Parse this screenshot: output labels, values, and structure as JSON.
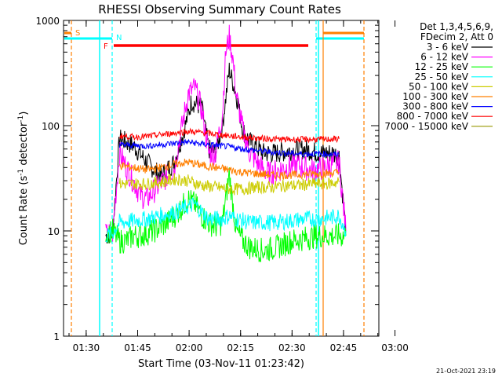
{
  "chart_data": {
    "type": "line",
    "title": "RHESSI Observing Summary Count Rates",
    "xlabel": "Start Time (03-Nov-11 01:23:42)",
    "ylabel_main": "Count Rate (s",
    "ylabel_sup1": "-1",
    "ylabel_mid": " detector",
    "ylabel_sup2": "-1",
    "ylabel_end": ")",
    "yscale": "log",
    "ylim": [
      1,
      1000
    ],
    "xlim_minutes": [
      -0.3,
      91.6
    ],
    "x_ticks": [
      {
        "m": 6.3,
        "label": "01:30"
      },
      {
        "m": 21.3,
        "label": "01:45"
      },
      {
        "m": 36.3,
        "label": "02:00"
      },
      {
        "m": 51.3,
        "label": "02:15"
      },
      {
        "m": 66.3,
        "label": "02:30"
      },
      {
        "m": 81.3,
        "label": "02:45"
      },
      {
        "m": 96.3,
        "label": "03:00"
      }
    ],
    "y_ticks": [
      {
        "v": 1,
        "label": "1"
      },
      {
        "v": 10,
        "label": "10"
      },
      {
        "v": 100,
        "label": "100"
      },
      {
        "v": 1000,
        "label": "1000"
      }
    ],
    "legend_header": [
      "Det 1,3,4,5,6,9,",
      "FDecim 2, Att 0"
    ],
    "series": [
      {
        "name": "3 - 6 keV",
        "color": "#000000",
        "points": [
          [
            12,
            9
          ],
          [
            14,
            9.5
          ],
          [
            16,
            75
          ],
          [
            20,
            65
          ],
          [
            24,
            45
          ],
          [
            28,
            33
          ],
          [
            32,
            45
          ],
          [
            35,
            95
          ],
          [
            37,
            170
          ],
          [
            40,
            150
          ],
          [
            42,
            60
          ],
          [
            44,
            55
          ],
          [
            46,
            100
          ],
          [
            48,
            340
          ],
          [
            50,
            200
          ],
          [
            52,
            90
          ],
          [
            54,
            70
          ],
          [
            58,
            55
          ],
          [
            62,
            55
          ],
          [
            66,
            58
          ],
          [
            70,
            60
          ],
          [
            74,
            55
          ],
          [
            78,
            55
          ],
          [
            80,
            52
          ],
          [
            82,
            10
          ]
        ]
      },
      {
        "name": "6 - 12 keV",
        "color": "#ff00ff",
        "points": [
          [
            12,
            9
          ],
          [
            14,
            9.5
          ],
          [
            16,
            55
          ],
          [
            18,
            40
          ],
          [
            20,
            30
          ],
          [
            22,
            22
          ],
          [
            24,
            20
          ],
          [
            26,
            24
          ],
          [
            28,
            28
          ],
          [
            32,
            40
          ],
          [
            34,
            90
          ],
          [
            36,
            200
          ],
          [
            38,
            230
          ],
          [
            40,
            140
          ],
          [
            42,
            55
          ],
          [
            44,
            55
          ],
          [
            46,
            130
          ],
          [
            47,
            500
          ],
          [
            48,
            700
          ],
          [
            49,
            450
          ],
          [
            50,
            200
          ],
          [
            52,
            90
          ],
          [
            54,
            55
          ],
          [
            56,
            45
          ],
          [
            58,
            38
          ],
          [
            60,
            35
          ],
          [
            64,
            40
          ],
          [
            68,
            42
          ],
          [
            72,
            38
          ],
          [
            76,
            40
          ],
          [
            80,
            45
          ],
          [
            82,
            10
          ]
        ]
      },
      {
        "name": "12 - 25 keV",
        "color": "#00ff00",
        "points": [
          [
            12,
            10
          ],
          [
            14,
            10
          ],
          [
            16,
            8
          ],
          [
            18,
            8
          ],
          [
            20,
            9
          ],
          [
            22,
            9
          ],
          [
            26,
            10
          ],
          [
            30,
            12
          ],
          [
            33,
            15
          ],
          [
            36,
            20
          ],
          [
            38,
            18
          ],
          [
            40,
            14
          ],
          [
            42,
            12
          ],
          [
            44,
            11
          ],
          [
            46,
            12
          ],
          [
            48,
            35
          ],
          [
            50,
            10
          ],
          [
            52,
            8
          ],
          [
            54,
            7
          ],
          [
            58,
            6.5
          ],
          [
            62,
            7
          ],
          [
            66,
            8
          ],
          [
            70,
            8.5
          ],
          [
            74,
            9
          ],
          [
            78,
            9
          ],
          [
            82,
            9
          ]
        ]
      },
      {
        "name": "25 - 50 keV",
        "color": "#00ffff",
        "points": [
          [
            12,
            9
          ],
          [
            14,
            9.5
          ],
          [
            16,
            12
          ],
          [
            20,
            12.5
          ],
          [
            24,
            13
          ],
          [
            28,
            14
          ],
          [
            32,
            15
          ],
          [
            36,
            17
          ],
          [
            38,
            18
          ],
          [
            40,
            15
          ],
          [
            42,
            13
          ],
          [
            44,
            13
          ],
          [
            46,
            13
          ],
          [
            48,
            14
          ],
          [
            50,
            13
          ],
          [
            54,
            12
          ],
          [
            58,
            12
          ],
          [
            62,
            12
          ],
          [
            66,
            12.5
          ],
          [
            70,
            13
          ],
          [
            74,
            13
          ],
          [
            78,
            13.5
          ],
          [
            80,
            14
          ],
          [
            82,
            10
          ]
        ]
      },
      {
        "name": "50 - 100 keV",
        "color": "#cccc00",
        "points": [
          [
            16,
            28
          ],
          [
            20,
            28
          ],
          [
            24,
            28
          ],
          [
            28,
            29
          ],
          [
            32,
            31
          ],
          [
            36,
            30
          ],
          [
            40,
            27
          ],
          [
            44,
            26
          ],
          [
            48,
            25
          ],
          [
            52,
            25
          ],
          [
            56,
            26
          ],
          [
            60,
            26
          ],
          [
            64,
            27
          ],
          [
            68,
            27
          ],
          [
            72,
            28
          ],
          [
            76,
            28
          ],
          [
            80,
            29
          ]
        ]
      },
      {
        "name": "100 - 300 keV",
        "color": "#ff7f00",
        "points": [
          [
            16,
            42
          ],
          [
            20,
            40
          ],
          [
            24,
            38
          ],
          [
            28,
            40
          ],
          [
            32,
            43
          ],
          [
            36,
            45
          ],
          [
            40,
            42
          ],
          [
            44,
            40
          ],
          [
            48,
            38
          ],
          [
            52,
            36
          ],
          [
            56,
            35
          ],
          [
            60,
            34
          ],
          [
            64,
            34
          ],
          [
            68,
            34
          ],
          [
            72,
            35
          ],
          [
            76,
            35
          ],
          [
            80,
            36
          ]
        ]
      },
      {
        "name": "300 - 800 keV",
        "color": "#0000ff",
        "points": [
          [
            16,
            66
          ],
          [
            20,
            65
          ],
          [
            24,
            64
          ],
          [
            28,
            66
          ],
          [
            32,
            68
          ],
          [
            36,
            70
          ],
          [
            40,
            67
          ],
          [
            44,
            65
          ],
          [
            48,
            63
          ],
          [
            52,
            60
          ],
          [
            56,
            58
          ],
          [
            60,
            56
          ],
          [
            64,
            55
          ],
          [
            68,
            54
          ],
          [
            72,
            54
          ],
          [
            76,
            54
          ],
          [
            80,
            53
          ]
        ]
      },
      {
        "name": "800 - 7000 keV",
        "color": "#ff0000",
        "points": [
          [
            16,
            80
          ],
          [
            20,
            78
          ],
          [
            24,
            79
          ],
          [
            28,
            82
          ],
          [
            32,
            85
          ],
          [
            36,
            88
          ],
          [
            40,
            86
          ],
          [
            44,
            83
          ],
          [
            48,
            80
          ],
          [
            52,
            78
          ],
          [
            56,
            76
          ],
          [
            60,
            75
          ],
          [
            64,
            74
          ],
          [
            68,
            74
          ],
          [
            72,
            74
          ],
          [
            76,
            74
          ],
          [
            80,
            75
          ]
        ]
      },
      {
        "name": "7000 - 15000 keV",
        "color": "#999900",
        "points": []
      }
    ],
    "flags": [
      {
        "label": "S",
        "color": "#ff7f00"
      },
      {
        "label": "N",
        "color": "#00ffff"
      },
      {
        "label": "F",
        "color": "#ff0000"
      }
    ],
    "timestamp": "21-Oct-2021 23:19"
  }
}
